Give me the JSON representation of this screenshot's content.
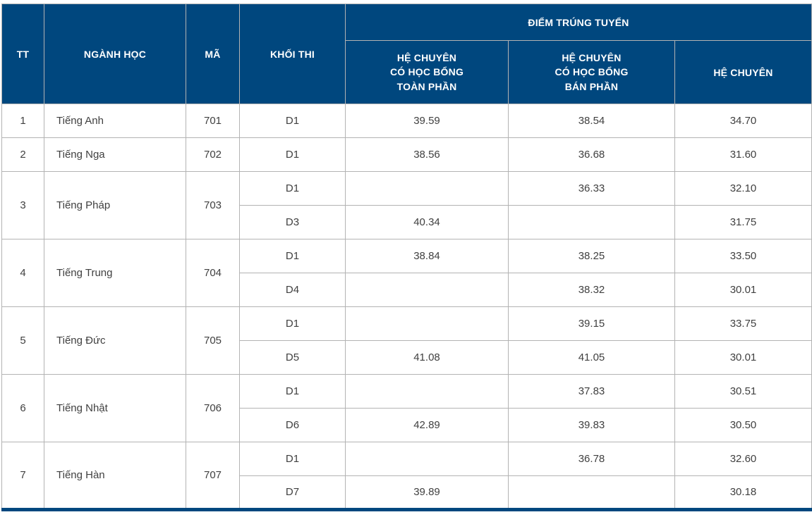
{
  "colors": {
    "header_bg": "#00477E",
    "header_text": "#ffffff",
    "body_text": "#404040",
    "grid_line": "#b3b3b3"
  },
  "table": {
    "headers": {
      "tt": "TT",
      "nganh_hoc": "NGÀNH HỌC",
      "ma": "MÃ",
      "khoi_thi": "KHỐI THI",
      "diem_trung_tuyen": "ĐIỂM TRÚNG TUYỂN",
      "he_chuyen_toan_phan": "HỆ CHUYÊN\nCÓ HỌC BỔNG\nTOÀN PHẦN",
      "he_chuyen_ban_phan": "HỆ CHUYÊN\nCÓ HỌC BỔNG\nBÁN PHẦN",
      "he_chuyen": "HỆ CHUYÊN"
    },
    "rows": [
      {
        "tt": "1",
        "nganh": "Tiếng Anh",
        "ma": "701",
        "blocks": [
          {
            "khoi": "D1",
            "toan_phan": "39.59",
            "ban_phan": "38.54",
            "chuyen": "34.70"
          }
        ]
      },
      {
        "tt": "2",
        "nganh": "Tiếng Nga",
        "ma": "702",
        "blocks": [
          {
            "khoi": "D1",
            "toan_phan": "38.56",
            "ban_phan": "36.68",
            "chuyen": "31.60"
          }
        ]
      },
      {
        "tt": "3",
        "nganh": "Tiếng Pháp",
        "ma": "703",
        "blocks": [
          {
            "khoi": "D1",
            "toan_phan": "",
            "ban_phan": "36.33",
            "chuyen": "32.10"
          },
          {
            "khoi": "D3",
            "toan_phan": "40.34",
            "ban_phan": "",
            "chuyen": "31.75"
          }
        ]
      },
      {
        "tt": "4",
        "nganh": "Tiếng Trung",
        "ma": "704",
        "blocks": [
          {
            "khoi": "D1",
            "toan_phan": "38.84",
            "ban_phan": "38.25",
            "chuyen": "33.50"
          },
          {
            "khoi": "D4",
            "toan_phan": "",
            "ban_phan": "38.32",
            "chuyen": "30.01"
          }
        ]
      },
      {
        "tt": "5",
        "nganh": "Tiếng Đức",
        "ma": "705",
        "blocks": [
          {
            "khoi": "D1",
            "toan_phan": "",
            "ban_phan": "39.15",
            "chuyen": "33.75"
          },
          {
            "khoi": "D5",
            "toan_phan": "41.08",
            "ban_phan": "41.05",
            "chuyen": "30.01"
          }
        ]
      },
      {
        "tt": "6",
        "nganh": "Tiếng Nhật",
        "ma": "706",
        "blocks": [
          {
            "khoi": "D1",
            "toan_phan": "",
            "ban_phan": "37.83",
            "chuyen": "30.51"
          },
          {
            "khoi": "D6",
            "toan_phan": "42.89",
            "ban_phan": "39.83",
            "chuyen": "30.50"
          }
        ]
      },
      {
        "tt": "7",
        "nganh": "Tiếng Hàn",
        "ma": "707",
        "blocks": [
          {
            "khoi": "D1",
            "toan_phan": "",
            "ban_phan": "36.78",
            "chuyen": "32.60"
          },
          {
            "khoi": "D7",
            "toan_phan": "39.89",
            "ban_phan": "",
            "chuyen": "30.18"
          }
        ]
      }
    ]
  }
}
